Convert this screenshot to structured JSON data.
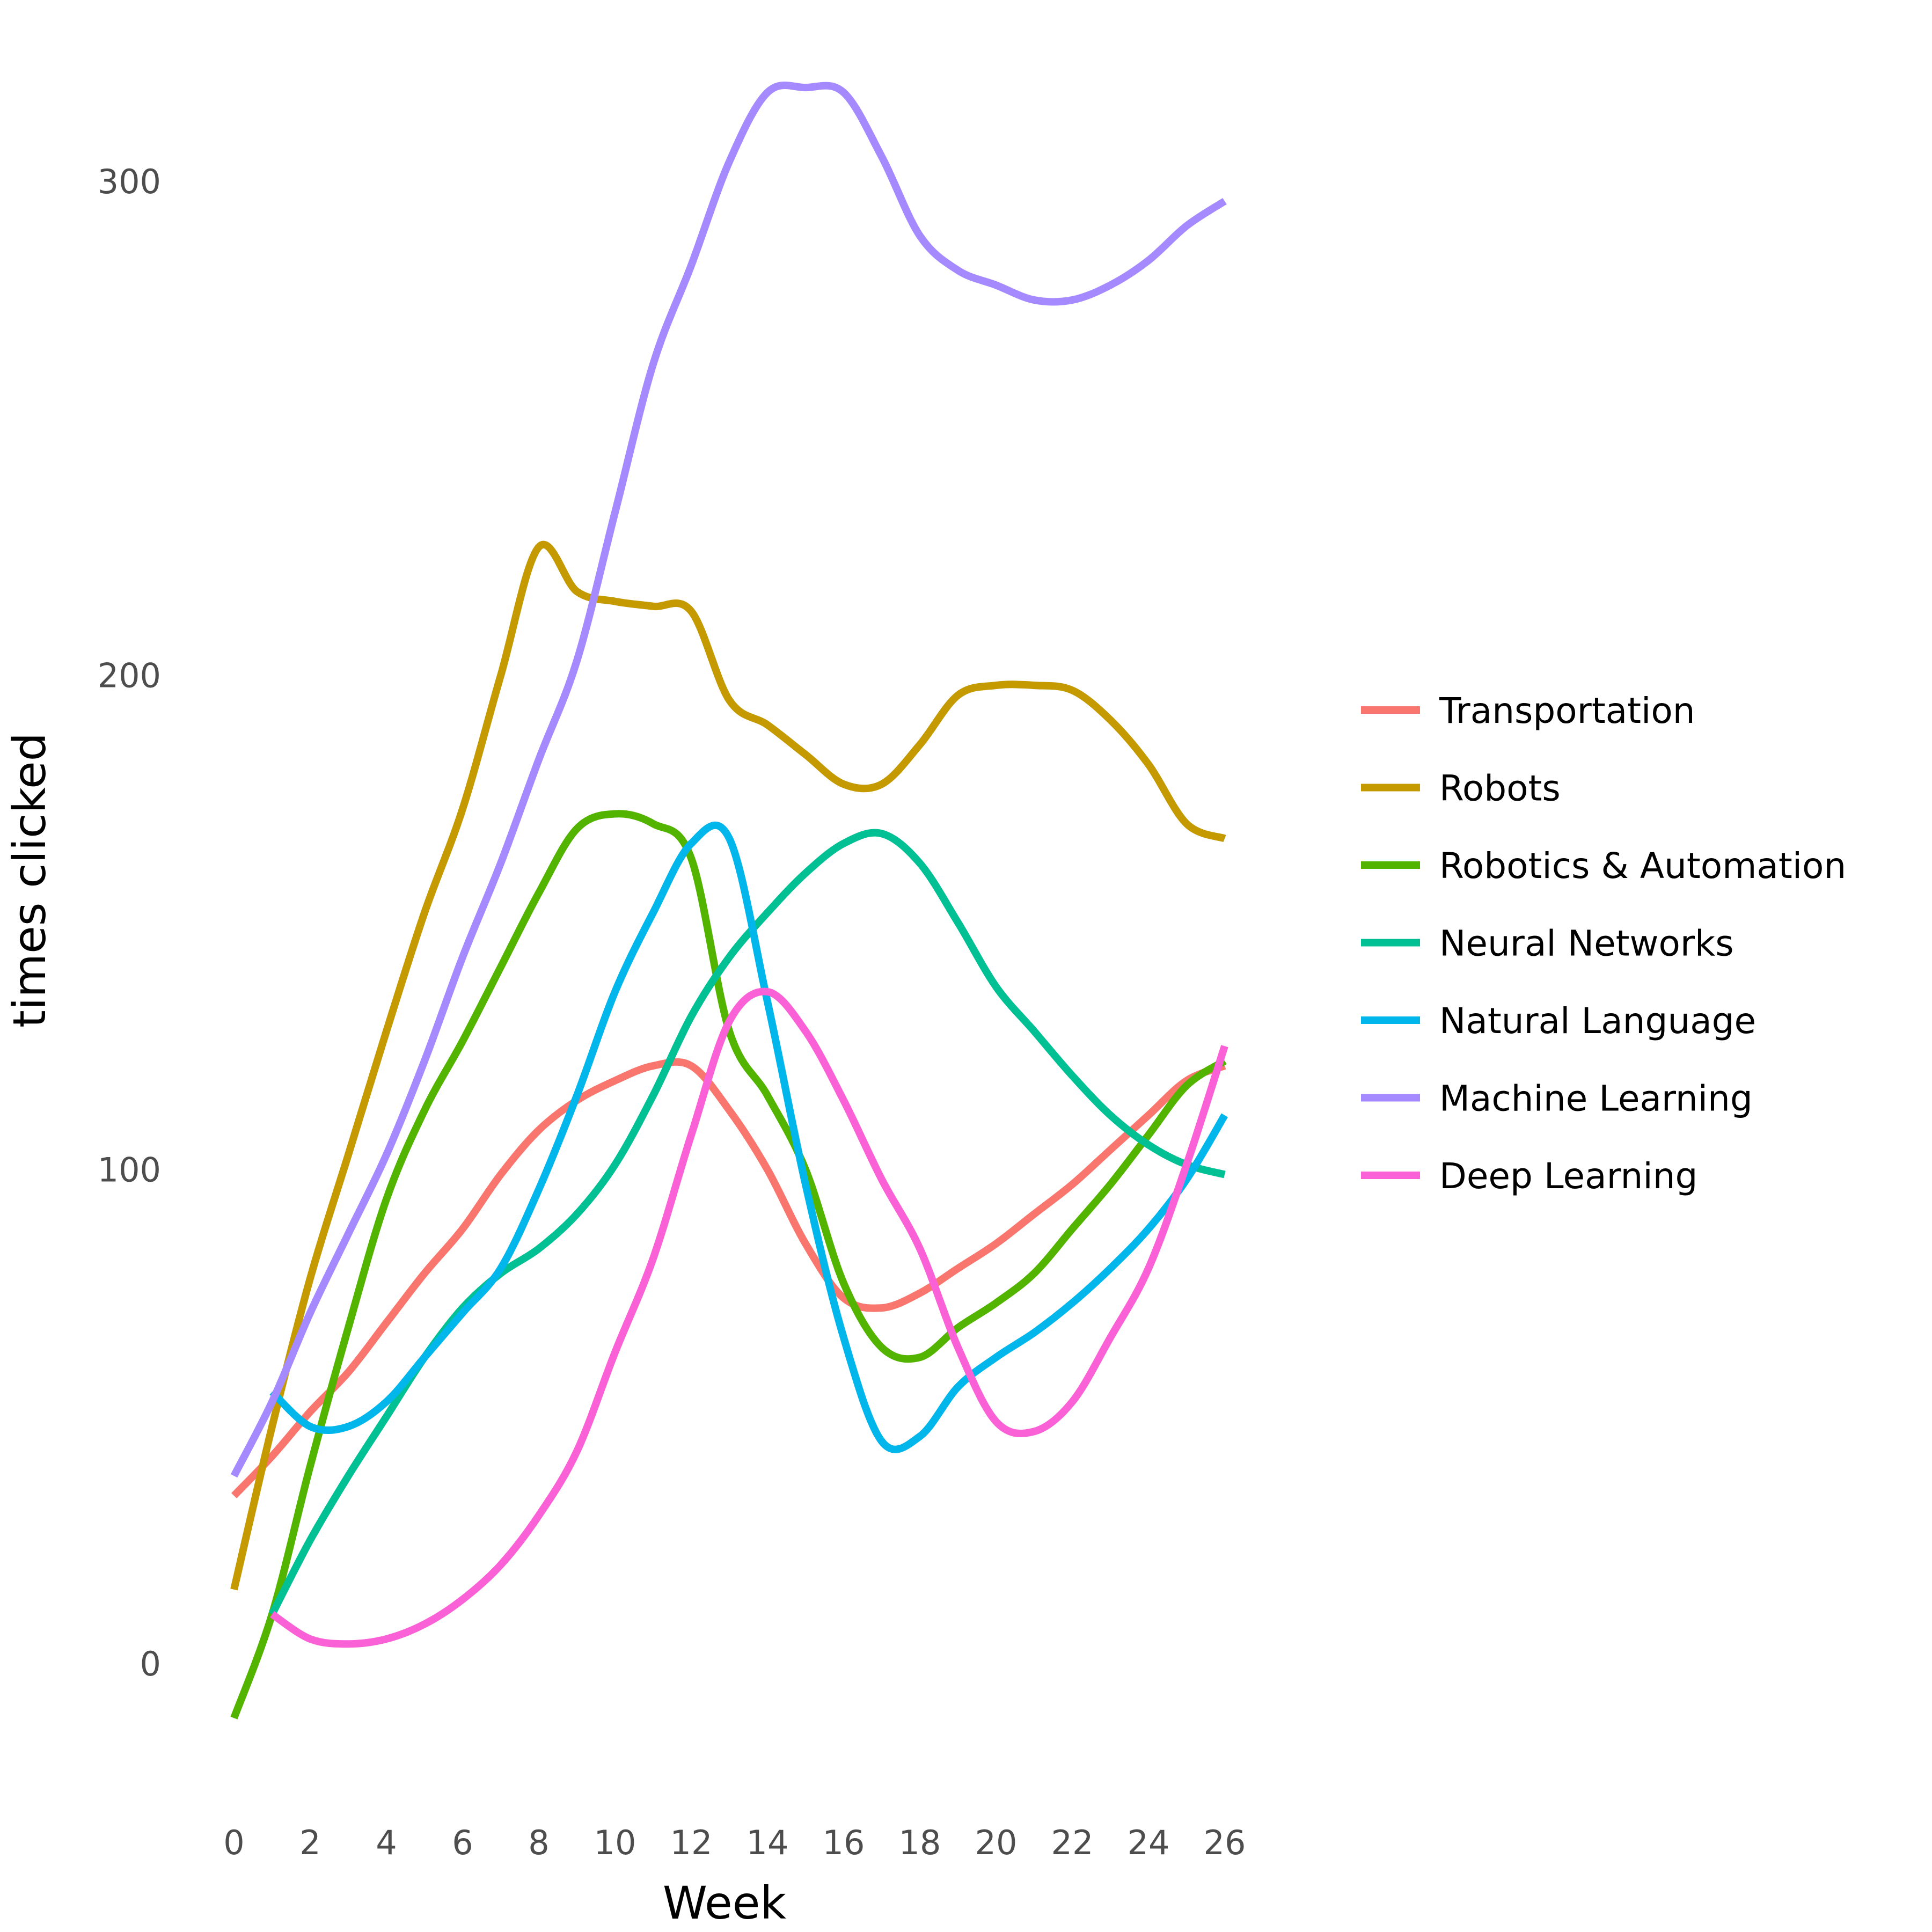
{
  "chart_data": {
    "type": "line",
    "title": "",
    "xlabel": "Week",
    "ylabel": "times clicked",
    "xlim": [
      0,
      26
    ],
    "ylim": [
      -22,
      318
    ],
    "x_ticks": [
      0,
      2,
      4,
      6,
      8,
      10,
      12,
      14,
      16,
      18,
      20,
      22,
      24,
      26
    ],
    "y_ticks": [
      0,
      100,
      200,
      300
    ],
    "grid": false,
    "legend_position": "right",
    "series": [
      {
        "name": "Transportation",
        "color": "#F8766D",
        "x": [
          0,
          1,
          2,
          3,
          4,
          5,
          6,
          7,
          8,
          9,
          10,
          11,
          12,
          13,
          14,
          15,
          16,
          17,
          18,
          19,
          20,
          21,
          22,
          23,
          24,
          25,
          26
        ],
        "y": [
          34,
          42,
          51,
          59,
          69,
          79,
          88,
          99,
          108,
          114,
          118,
          121,
          121,
          112,
          100,
          85,
          74,
          72,
          75,
          80,
          85,
          91,
          97,
          104,
          111,
          118,
          121
        ]
      },
      {
        "name": "Robots",
        "color": "#C49A00",
        "x": [
          0,
          1,
          2,
          3,
          4,
          5,
          6,
          7,
          8,
          9,
          10,
          11,
          12,
          13,
          14,
          15,
          16,
          17,
          18,
          19,
          20,
          21,
          22,
          23,
          24,
          25,
          26
        ],
        "y": [
          15,
          48,
          78,
          103,
          128,
          152,
          173,
          200,
          226,
          217,
          215,
          214,
          213,
          195,
          190,
          184,
          178,
          178,
          186,
          196,
          198,
          198,
          197,
          191,
          182,
          170,
          167
        ]
      },
      {
        "name": "Robotics & Automation",
        "color": "#53B400",
        "x": [
          0,
          1,
          2,
          3,
          4,
          5,
          6,
          7,
          8,
          9,
          10,
          11,
          12,
          13,
          14,
          15,
          16,
          17,
          18,
          19,
          20,
          21,
          22,
          23,
          24,
          25,
          26
        ],
        "y": [
          -11,
          10,
          40,
          68,
          94,
          112,
          126,
          141,
          156,
          169,
          172,
          170,
          163,
          128,
          115,
          100,
          77,
          64,
          62,
          68,
          73,
          79,
          88,
          97,
          107,
          117,
          122
        ]
      },
      {
        "name": "Neural Networks",
        "color": "#00C094",
        "x": [
          1,
          2,
          3,
          4,
          5,
          6,
          7,
          8,
          9,
          10,
          11,
          12,
          13,
          14,
          15,
          16,
          17,
          18,
          19,
          20,
          21,
          22,
          23,
          24,
          25,
          26
        ],
        "y": [
          10,
          25,
          38,
          50,
          62,
          72,
          79,
          84,
          91,
          101,
          115,
          131,
          143,
          152,
          160,
          166,
          168,
          162,
          150,
          137,
          128,
          119,
          111,
          105,
          101,
          99
        ]
      },
      {
        "name": "Natural Language",
        "color": "#00B6EB",
        "x": [
          1,
          2,
          3,
          4,
          5,
          6,
          7,
          8,
          9,
          10,
          11,
          12,
          13,
          14,
          15,
          16,
          17,
          18,
          19,
          20,
          21,
          22,
          23,
          24,
          25,
          26
        ],
        "y": [
          55,
          48,
          48,
          53,
          62,
          71,
          80,
          96,
          115,
          136,
          152,
          166,
          167,
          134,
          97,
          66,
          45,
          46,
          56,
          62,
          67,
          73,
          80,
          88,
          98,
          111
        ]
      },
      {
        "name": "Machine Learning",
        "color": "#A58AFF",
        "x": [
          0,
          1,
          2,
          3,
          4,
          5,
          6,
          7,
          8,
          9,
          10,
          11,
          12,
          13,
          14,
          15,
          16,
          17,
          18,
          19,
          20,
          21,
          22,
          23,
          24,
          25,
          26
        ],
        "y": [
          38,
          53,
          71,
          87,
          103,
          122,
          143,
          162,
          183,
          203,
          233,
          263,
          283,
          304,
          318,
          319,
          318,
          305,
          289,
          282,
          279,
          276,
          276,
          279,
          284,
          291,
          296
        ]
      },
      {
        "name": "Deep Learning",
        "color": "#FB61D7",
        "x": [
          1,
          2,
          3,
          4,
          5,
          6,
          7,
          8,
          9,
          10,
          11,
          12,
          13,
          14,
          15,
          16,
          17,
          18,
          19,
          20,
          21,
          22,
          23,
          24,
          25,
          26
        ],
        "y": [
          10,
          5,
          4,
          5,
          8,
          13,
          20,
          30,
          43,
          63,
          82,
          107,
          130,
          136,
          128,
          114,
          98,
          84,
          64,
          49,
          47,
          53,
          66,
          80,
          101,
          125
        ]
      }
    ]
  }
}
